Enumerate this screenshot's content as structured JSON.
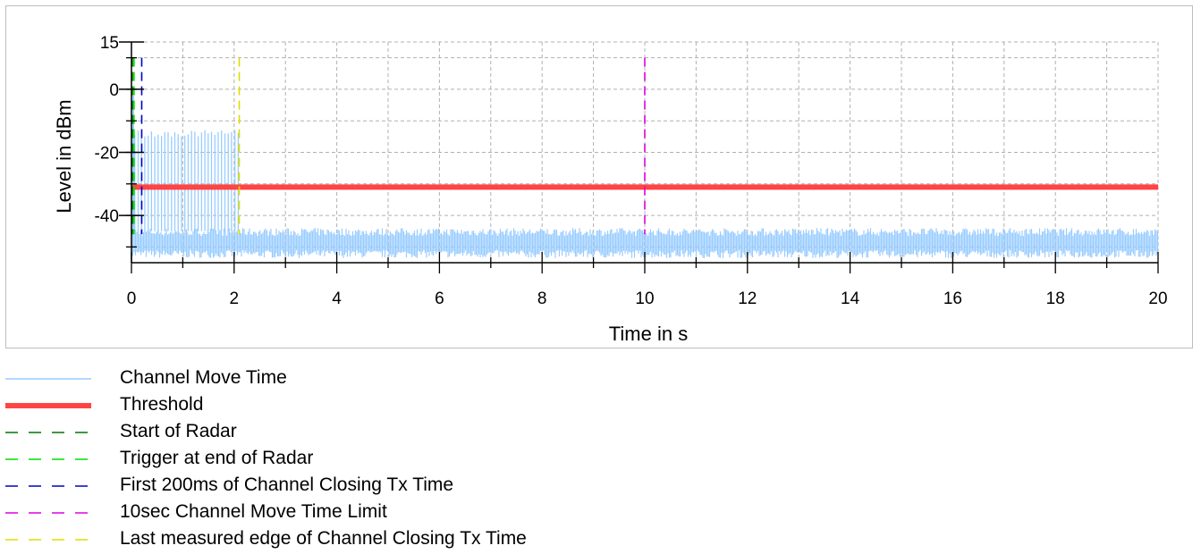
{
  "chart_data": {
    "type": "line",
    "title": "",
    "xlabel": "Time in s",
    "ylabel": "Level in dBm",
    "xlim": [
      0,
      20
    ],
    "ylim": [
      -55,
      15
    ],
    "x_ticks": [
      "0",
      "2",
      "4",
      "6",
      "8",
      "10",
      "12",
      "14",
      "16",
      "18",
      "20"
    ],
    "y_ticks": [
      "15",
      "0",
      "-20",
      "-40"
    ],
    "grid": true,
    "legend_position": "bottom-left",
    "series": [
      {
        "name": "Channel Move Time",
        "kind": "trace",
        "color": "#99ccff",
        "noise_floor_range": [
          -53,
          -45
        ],
        "burst_region": [
          0,
          2.1
        ],
        "burst_peak": -13
      },
      {
        "name": "Threshold",
        "kind": "hline",
        "y": -31,
        "color": "#ff4444"
      },
      {
        "name": "Start of Radar",
        "kind": "vline",
        "x": 0,
        "color": "#007700"
      },
      {
        "name": "Trigger at end of Radar",
        "kind": "vline",
        "x": 0.05,
        "color": "#00dd00"
      },
      {
        "name": "First 200ms of Channel Closing Tx Time",
        "kind": "vline",
        "x": 0.2,
        "color": "#0000cc"
      },
      {
        "name": "10sec Channel Move Time Limit",
        "kind": "vline",
        "x": 10,
        "color": "#dd00dd"
      },
      {
        "name": "Last measured edge of Channel Closing Tx Time",
        "kind": "vline",
        "x": 2.1,
        "color": "#dddd00"
      }
    ]
  }
}
